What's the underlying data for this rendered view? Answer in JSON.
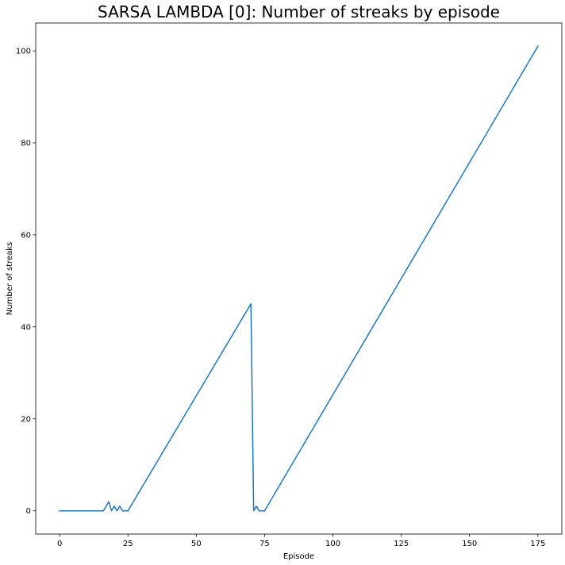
{
  "chart_data": {
    "type": "line",
    "title": "SARSA LAMBDA [0]: Number of streaks by episode",
    "xlabel": "Episode",
    "ylabel": "Number of streaks",
    "xlim": [
      -8.75,
      183.75
    ],
    "ylim": [
      -5.05,
      106.05
    ],
    "xticks": [
      0,
      25,
      50,
      75,
      100,
      125,
      150,
      175
    ],
    "yticks": [
      0,
      20,
      40,
      60,
      80,
      100
    ],
    "grid": false,
    "legend": "none",
    "series": [
      {
        "color": "#1f77b4",
        "x": [
          0,
          1,
          2,
          3,
          4,
          5,
          6,
          7,
          8,
          9,
          10,
          11,
          12,
          13,
          14,
          15,
          16,
          17,
          18,
          19,
          20,
          21,
          22,
          23,
          24,
          25,
          70,
          71,
          72,
          73,
          74,
          75,
          175
        ],
        "y": [
          0,
          0,
          0,
          0,
          0,
          0,
          0,
          0,
          0,
          0,
          0,
          0,
          0,
          0,
          0,
          0,
          0,
          1,
          2,
          0,
          1,
          0,
          1,
          0,
          0,
          0,
          45,
          0,
          1,
          0,
          0,
          0,
          101
        ]
      }
    ]
  }
}
